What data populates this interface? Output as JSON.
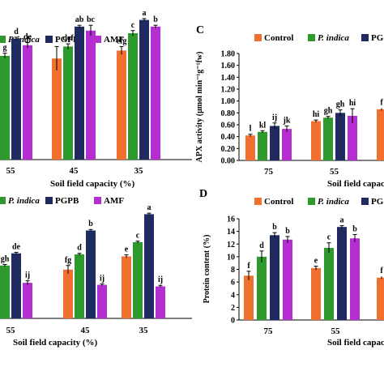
{
  "colors": {
    "Control": "#f07030",
    "P. indica": "#2e9a2e",
    "PGPB": "#1f2a60",
    "AMF": "#b42ed0"
  },
  "chart_data": [
    {
      "id": "top-left",
      "type": "bar",
      "panel_label": "",
      "xlabel": "Soil field capacity (%)",
      "ylabel": "",
      "legend": [
        "P. indica",
        "PGPB",
        "AMF"
      ],
      "legend_placement": "top",
      "categories": [
        "55",
        "45",
        "35"
      ],
      "ylim": [
        0,
        1.2
      ],
      "series": [
        {
          "name": "Control",
          "values": [
            0.65,
            0.76,
            0.82
          ],
          "errors": [
            0.01,
            0.09,
            0.03
          ],
          "letters": [
            "",
            "",
            "efg"
          ]
        },
        {
          "name": "P. indica",
          "values": [
            0.78,
            0.85,
            0.95
          ],
          "errors": [
            0.02,
            0.02,
            0.02
          ],
          "letters": [
            "g",
            "def",
            "c"
          ]
        },
        {
          "name": "PGPB",
          "values": [
            0.91,
            1.0,
            1.05
          ],
          "errors": [
            0.01,
            0.01,
            0.01
          ],
          "letters": [
            "d",
            "ab",
            "a"
          ]
        },
        {
          "name": "AMF",
          "values": [
            0.86,
            0.97,
            1.0
          ],
          "errors": [
            0.02,
            0.04,
            0.01
          ],
          "letters": [
            "de",
            "bc",
            "b"
          ]
        }
      ]
    },
    {
      "id": "C",
      "type": "bar",
      "panel_label": "C",
      "xlabel": "Soil field capacity (%)",
      "ylabel": "APX activity (μmol min⁻¹g⁻¹fw)",
      "legend": [
        "Control",
        "P. indica",
        "PG"
      ],
      "legend_placement": "top",
      "categories": [
        "75",
        "55"
      ],
      "ylim": [
        0,
        1.8
      ],
      "yticks": [
        "0.00",
        "0.20",
        "0.40",
        "0.60",
        "0.80",
        "1.00",
        "1.20",
        "1.40",
        "1.60",
        "1.80"
      ],
      "series": [
        {
          "name": "Control",
          "values": [
            0.42,
            0.66
          ],
          "errors": [
            0.02,
            0.02
          ],
          "letters": [
            "l",
            "hi"
          ]
        },
        {
          "name": "P. indica",
          "values": [
            0.48,
            0.72
          ],
          "errors": [
            0.02,
            0.02
          ],
          "letters": [
            "kl",
            "gh"
          ]
        },
        {
          "name": "PGPB",
          "values": [
            0.58,
            0.8
          ],
          "errors": [
            0.05,
            0.05
          ],
          "letters": [
            "ij",
            "gh"
          ]
        },
        {
          "name": "AMF",
          "values": [
            0.53,
            0.75
          ],
          "errors": [
            0.05,
            0.12
          ],
          "letters": [
            "jk",
            "hi"
          ]
        }
      ],
      "extra_bar": {
        "value": 0.86,
        "error": 0.02,
        "letter": "f"
      }
    },
    {
      "id": "bottom-left",
      "type": "bar",
      "panel_label": "",
      "xlabel": "Soil field capacity (%)",
      "ylabel": "",
      "legend": [
        "P. indica",
        "PGPB",
        "AMF"
      ],
      "legend_placement": "top",
      "categories": [
        "55",
        "45",
        "35"
      ],
      "ylim": [
        0,
        2.2
      ],
      "series": [
        {
          "name": "Control",
          "values": [
            0.88,
            0.96,
            1.22
          ],
          "errors": [
            0.02,
            0.08,
            0.03
          ],
          "letters": [
            "",
            "fg",
            "e"
          ]
        },
        {
          "name": "P. indica",
          "values": [
            1.04,
            1.26,
            1.5
          ],
          "errors": [
            0.02,
            0.02,
            0.02
          ],
          "letters": [
            "gh",
            "d",
            "c"
          ]
        },
        {
          "name": "PGPB",
          "values": [
            1.28,
            1.73,
            2.05
          ],
          "errors": [
            0.02,
            0.02,
            0.02
          ],
          "letters": [
            "de",
            "b",
            "a"
          ]
        },
        {
          "name": "AMF",
          "values": [
            0.7,
            0.66,
            0.63
          ],
          "errors": [
            0.04,
            0.02,
            0.02
          ],
          "letters": [
            "ij",
            "ij",
            "ij"
          ]
        }
      ]
    },
    {
      "id": "D",
      "type": "bar",
      "panel_label": "D",
      "xlabel": "Soil field capacity (%)",
      "ylabel": "Protein content (%)",
      "legend": [
        "Control",
        "P. indica",
        "PG"
      ],
      "legend_placement": "top",
      "categories": [
        "75",
        "55"
      ],
      "ylim": [
        0,
        16
      ],
      "yticks": [
        "0",
        "2",
        "4",
        "6",
        "8",
        "10",
        "12",
        "14",
        "16"
      ],
      "series": [
        {
          "name": "Control",
          "values": [
            7.0,
            8.2
          ],
          "errors": [
            0.7,
            0.3
          ],
          "letters": [
            "f",
            "e"
          ]
        },
        {
          "name": "P. indica",
          "values": [
            10.0,
            11.4
          ],
          "errors": [
            0.9,
            0.8
          ],
          "letters": [
            "d",
            "c"
          ]
        },
        {
          "name": "PGPB",
          "values": [
            13.4,
            14.7
          ],
          "errors": [
            0.4,
            0.2
          ],
          "letters": [
            "b",
            "a"
          ]
        },
        {
          "name": "AMF",
          "values": [
            12.7,
            12.9
          ],
          "errors": [
            0.5,
            0.6
          ],
          "letters": [
            "b",
            "b"
          ]
        }
      ],
      "extra_bar": {
        "value": 6.7,
        "error": 0.2,
        "letter": "f"
      }
    }
  ]
}
